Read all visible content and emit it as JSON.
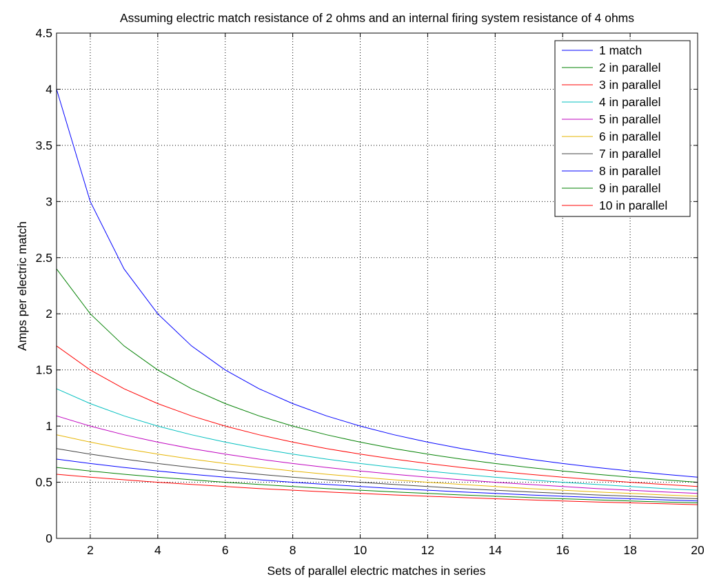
{
  "chart_data": {
    "type": "line",
    "title": "Assuming electric match resistance of 2 ohms and an internal firing system resistance of 4 ohms",
    "xlabel": "Sets of parallel electric matches in series",
    "ylabel": "Amps per electric match",
    "xlim": [
      1,
      20
    ],
    "ylim": [
      0,
      4.5
    ],
    "xticks": [
      2,
      4,
      6,
      8,
      10,
      12,
      14,
      16,
      18,
      20
    ],
    "xtick_labels": [
      "2",
      "4",
      "6",
      "8",
      "10",
      "12",
      "14",
      "16",
      "18",
      "20"
    ],
    "yticks": [
      0,
      0.5,
      1,
      1.5,
      2,
      2.5,
      3,
      3.5,
      4,
      4.5
    ],
    "ytick_labels": [
      "0",
      "0.5",
      "1",
      "1.5",
      "2",
      "2.5",
      "3",
      "3.5",
      "4",
      "4.5"
    ],
    "grid": true,
    "legend_position": "top-right",
    "x": [
      1,
      2,
      3,
      4,
      5,
      6,
      7,
      8,
      9,
      10,
      11,
      12,
      13,
      14,
      15,
      16,
      17,
      18,
      19,
      20
    ],
    "series": [
      {
        "name": "1 match",
        "color": "#0000ff",
        "values": [
          4.0,
          3.0,
          2.4,
          2.0,
          1.714,
          1.5,
          1.333,
          1.2,
          1.091,
          1.0,
          0.923,
          0.857,
          0.8,
          0.75,
          0.706,
          0.667,
          0.632,
          0.6,
          0.571,
          0.545
        ]
      },
      {
        "name": "2 in parallel",
        "color": "#008000",
        "values": [
          2.4,
          2.0,
          1.714,
          1.5,
          1.333,
          1.2,
          1.091,
          1.0,
          0.923,
          0.857,
          0.8,
          0.75,
          0.706,
          0.667,
          0.632,
          0.6,
          0.571,
          0.545,
          0.522,
          0.5
        ]
      },
      {
        "name": "3 in parallel",
        "color": "#ff0000",
        "values": [
          1.714,
          1.5,
          1.333,
          1.2,
          1.091,
          1.0,
          0.923,
          0.857,
          0.8,
          0.75,
          0.706,
          0.667,
          0.632,
          0.6,
          0.571,
          0.545,
          0.522,
          0.5,
          0.48,
          0.462
        ]
      },
      {
        "name": "4 in parallel",
        "color": "#00bfbf",
        "values": [
          1.333,
          1.2,
          1.091,
          1.0,
          0.923,
          0.857,
          0.8,
          0.75,
          0.706,
          0.667,
          0.632,
          0.6,
          0.571,
          0.545,
          0.522,
          0.5,
          0.48,
          0.462,
          0.444,
          0.429
        ]
      },
      {
        "name": "5 in parallel",
        "color": "#bf00bf",
        "values": [
          1.091,
          1.0,
          0.923,
          0.857,
          0.8,
          0.75,
          0.706,
          0.667,
          0.632,
          0.6,
          0.571,
          0.545,
          0.522,
          0.5,
          0.48,
          0.462,
          0.444,
          0.429,
          0.414,
          0.4
        ]
      },
      {
        "name": "6 in parallel",
        "color": "#e6b400",
        "values": [
          0.923,
          0.857,
          0.8,
          0.75,
          0.706,
          0.667,
          0.632,
          0.6,
          0.571,
          0.545,
          0.522,
          0.5,
          0.48,
          0.462,
          0.444,
          0.429,
          0.414,
          0.4,
          0.387,
          0.375
        ]
      },
      {
        "name": "7 in parallel",
        "color": "#404040",
        "values": [
          0.8,
          0.75,
          0.706,
          0.667,
          0.632,
          0.6,
          0.571,
          0.545,
          0.522,
          0.5,
          0.48,
          0.462,
          0.444,
          0.429,
          0.414,
          0.4,
          0.387,
          0.375,
          0.364,
          0.353
        ]
      },
      {
        "name": "8 in parallel",
        "color": "#0000ff",
        "values": [
          0.706,
          0.667,
          0.632,
          0.6,
          0.571,
          0.545,
          0.522,
          0.5,
          0.48,
          0.462,
          0.444,
          0.429,
          0.414,
          0.4,
          0.387,
          0.375,
          0.364,
          0.353,
          0.343,
          0.333
        ]
      },
      {
        "name": "9 in parallel",
        "color": "#008000",
        "values": [
          0.632,
          0.6,
          0.571,
          0.545,
          0.522,
          0.5,
          0.48,
          0.462,
          0.444,
          0.429,
          0.414,
          0.4,
          0.387,
          0.375,
          0.364,
          0.353,
          0.343,
          0.333,
          0.324,
          0.316
        ]
      },
      {
        "name": "10 in parallel",
        "color": "#ff0000",
        "values": [
          0.571,
          0.545,
          0.522,
          0.5,
          0.48,
          0.462,
          0.444,
          0.429,
          0.414,
          0.4,
          0.387,
          0.375,
          0.364,
          0.353,
          0.343,
          0.333,
          0.324,
          0.316,
          0.308,
          0.3
        ]
      }
    ]
  }
}
